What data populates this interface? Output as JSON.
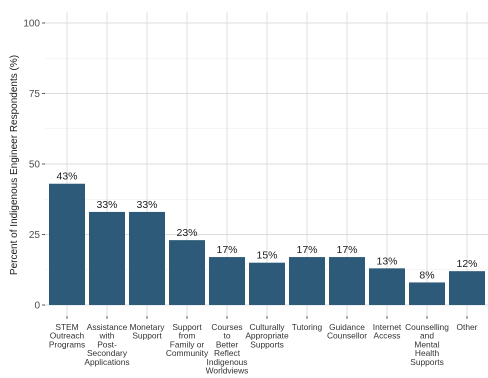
{
  "chart_data": {
    "type": "bar",
    "ylabel": "Percent of Indigenous Engineer Respondents (%)",
    "xlabel": "",
    "ylim": [
      0,
      100
    ],
    "yticks": [
      0,
      25,
      50,
      75,
      100
    ],
    "grid": true,
    "legend": "none",
    "bar_color": "#2c5a78",
    "categories": [
      [
        "STEM",
        "Outreach",
        "Programs"
      ],
      [
        "Assistance",
        "with",
        "Post-",
        "Secondary",
        "Applications"
      ],
      [
        "Monetary",
        "Support"
      ],
      [
        "Support",
        "from",
        "Family or",
        "Community"
      ],
      [
        "Courses",
        "to",
        "Better",
        "Reflect",
        "Indigenous",
        "Worldviews"
      ],
      [
        "Culturally",
        "Appropriate",
        "Supports"
      ],
      [
        "Tutoring"
      ],
      [
        "Guidance",
        "Counsellor"
      ],
      [
        "Internet",
        "Access"
      ],
      [
        "Counselling",
        "and",
        "Mental",
        "Health",
        "Supports"
      ],
      [
        "Other"
      ]
    ],
    "values": [
      43,
      33,
      33,
      23,
      17,
      15,
      17,
      17,
      13,
      8,
      12
    ],
    "value_labels": [
      "43%",
      "33%",
      "33%",
      "23%",
      "17%",
      "15%",
      "17%",
      "17%",
      "13%",
      "8%",
      "12%"
    ]
  }
}
